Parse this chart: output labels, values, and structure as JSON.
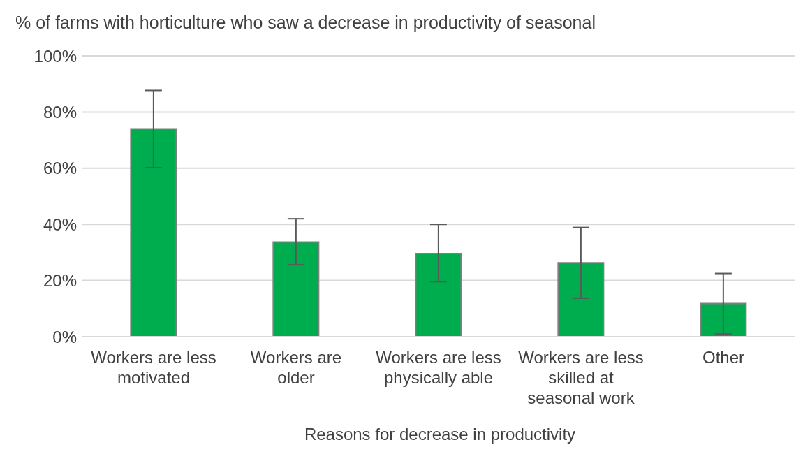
{
  "chart_data": {
    "type": "bar",
    "title": "% of farms with horticulture who saw a decrease in productivity of seasonal",
    "xlabel": "Reasons for decrease in productivity",
    "categories": [
      "Workers are less motivated",
      "Workers are older",
      "Workers are less physically able",
      "Workers are less skilled at seasonal work",
      "Other"
    ],
    "values": [
      74,
      33.7,
      29.6,
      26.3,
      11.8
    ],
    "errors": [
      [
        60.2,
        87.7
      ],
      [
        25.6,
        42
      ],
      [
        19.6,
        40
      ],
      [
        13.7,
        38.9
      ],
      [
        0.9,
        22.5
      ]
    ],
    "color": "#00ad4e",
    "ylim": [
      0,
      100
    ],
    "yticks": [
      {
        "value": 0,
        "label": "0%"
      },
      {
        "value": 20,
        "label": "20%"
      },
      {
        "value": 40,
        "label": "40%"
      },
      {
        "value": 60,
        "label": "60%"
      },
      {
        "value": 80,
        "label": "80%"
      },
      {
        "value": 100,
        "label": "100%"
      }
    ],
    "grid": "y"
  }
}
